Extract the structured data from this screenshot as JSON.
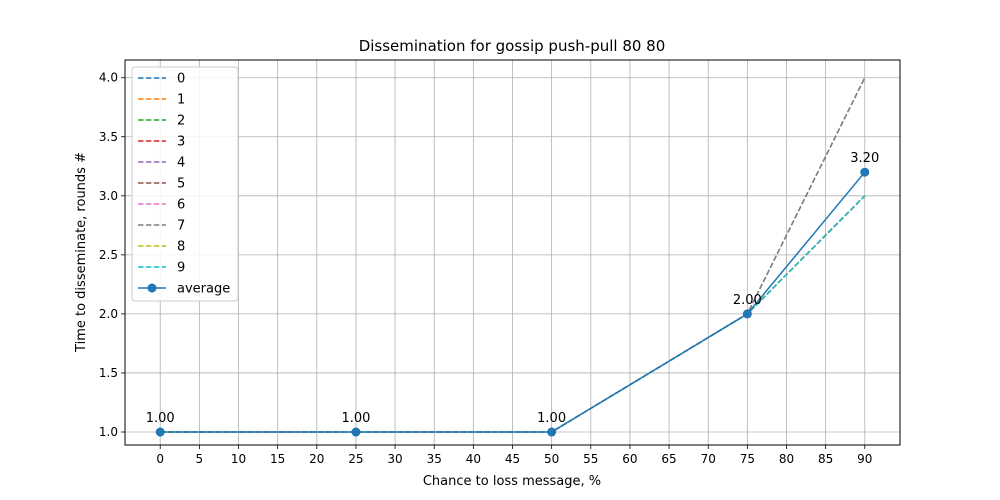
{
  "chart_data": {
    "type": "line",
    "title": "Dissemination for gossip push-pull 80 80",
    "xlabel": "Chance to loss message, %",
    "ylabel": "Time to disseminate, rounds #",
    "xlim": [
      -4.5,
      94.5
    ],
    "ylim": [
      0.89,
      4.15
    ],
    "xticks": [
      "0",
      "5",
      "10",
      "15",
      "20",
      "25",
      "30",
      "35",
      "40",
      "45",
      "50",
      "55",
      "60",
      "65",
      "70",
      "75",
      "80",
      "85",
      "90"
    ],
    "yticks": [
      "1.0",
      "1.5",
      "2.0",
      "2.5",
      "3.0",
      "3.5",
      "4.0"
    ],
    "grid": true,
    "legend_position": "top-left",
    "x": [
      0,
      25,
      50,
      75,
      90
    ],
    "series": [
      {
        "name": "0",
        "color": "#1f77b4",
        "style": "dashed",
        "values": [
          1,
          1,
          1,
          2,
          3
        ]
      },
      {
        "name": "1",
        "color": "#ff7f0e",
        "style": "dashed",
        "values": [
          1,
          1,
          1,
          2,
          3
        ]
      },
      {
        "name": "2",
        "color": "#2ca02c",
        "style": "dashed",
        "values": [
          1,
          1,
          1,
          2,
          3
        ]
      },
      {
        "name": "3",
        "color": "#d62728",
        "style": "dashed",
        "values": [
          1,
          1,
          1,
          2,
          3
        ]
      },
      {
        "name": "4",
        "color": "#9467bd",
        "style": "dashed",
        "values": [
          1,
          1,
          1,
          2,
          4
        ]
      },
      {
        "name": "5",
        "color": "#8c564b",
        "style": "dashed",
        "values": [
          1,
          1,
          1,
          2,
          3
        ]
      },
      {
        "name": "6",
        "color": "#e377c2",
        "style": "dashed",
        "values": [
          1,
          1,
          1,
          2,
          3
        ]
      },
      {
        "name": "7",
        "color": "#7f7f7f",
        "style": "dashed",
        "values": [
          1,
          1,
          1,
          2,
          4
        ]
      },
      {
        "name": "8",
        "color": "#bcbd22",
        "style": "dashed",
        "values": [
          1,
          1,
          1,
          2,
          3
        ]
      },
      {
        "name": "9",
        "color": "#17becf",
        "style": "dashed",
        "values": [
          1,
          1,
          1,
          2,
          3
        ]
      },
      {
        "name": "average",
        "color": "#1f77b4",
        "style": "solid-marker",
        "values": [
          1,
          1,
          1,
          2,
          3.2
        ]
      }
    ],
    "annotations": [
      "1.00",
      "1.00",
      "1.00",
      "2.00",
      "3.20"
    ]
  }
}
